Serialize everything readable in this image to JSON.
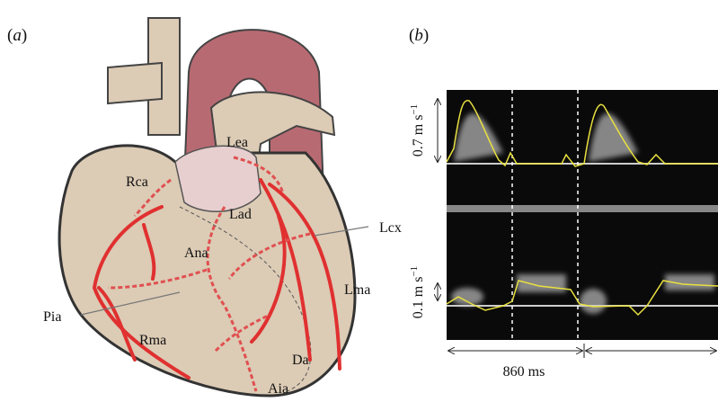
{
  "panels": {
    "a": {
      "tag": "(a)",
      "labels": [
        "Lea",
        "Rca",
        "Lad",
        "Lcx",
        "Ana",
        "Pia",
        "Lma",
        "Rma",
        "Da",
        "Aia"
      ]
    },
    "b": {
      "tag": "(b)",
      "top_scale": {
        "text": "0.7 m s",
        "sup": "−1"
      },
      "bottom_scale": {
        "text": "0.1 m s",
        "sup": "−1"
      },
      "time_label": "860 ms"
    }
  }
}
